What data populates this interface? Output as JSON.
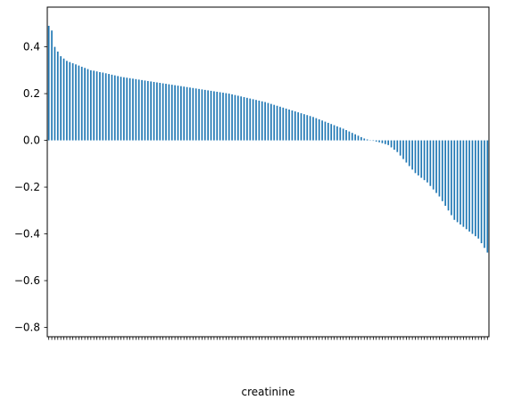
{
  "chart_data": {
    "type": "bar",
    "title": "",
    "xlabel": "creatinine",
    "ylabel": "",
    "ylim": [
      -0.84,
      0.57
    ],
    "yticks": [
      0.4,
      0.2,
      0.0,
      -0.2,
      -0.4,
      -0.6,
      -0.8
    ],
    "ytick_labels": [
      "0.4",
      "0.2",
      "0.0",
      "−0.2",
      "−0.4",
      "−0.6",
      "−0.8"
    ],
    "grid": false,
    "legend": "none",
    "bar_color": "#1f77b4",
    "values": [
      0.49,
      0.47,
      0.4,
      0.38,
      0.36,
      0.35,
      0.34,
      0.335,
      0.33,
      0.325,
      0.32,
      0.315,
      0.31,
      0.305,
      0.3,
      0.298,
      0.295,
      0.292,
      0.29,
      0.287,
      0.284,
      0.281,
      0.278,
      0.275,
      0.272,
      0.27,
      0.268,
      0.266,
      0.264,
      0.262,
      0.26,
      0.258,
      0.256,
      0.254,
      0.252,
      0.25,
      0.248,
      0.246,
      0.244,
      0.242,
      0.24,
      0.238,
      0.236,
      0.234,
      0.232,
      0.23,
      0.228,
      0.226,
      0.224,
      0.222,
      0.22,
      0.218,
      0.216,
      0.214,
      0.212,
      0.21,
      0.208,
      0.206,
      0.204,
      0.202,
      0.2,
      0.197,
      0.194,
      0.191,
      0.188,
      0.185,
      0.182,
      0.179,
      0.176,
      0.173,
      0.17,
      0.167,
      0.164,
      0.16,
      0.156,
      0.152,
      0.148,
      0.144,
      0.14,
      0.136,
      0.132,
      0.128,
      0.124,
      0.12,
      0.116,
      0.112,
      0.108,
      0.104,
      0.1,
      0.095,
      0.09,
      0.085,
      0.08,
      0.075,
      0.07,
      0.065,
      0.06,
      0.055,
      0.05,
      0.044,
      0.038,
      0.032,
      0.026,
      0.02,
      0.014,
      0.008,
      0.004,
      0.001,
      -0.002,
      -0.005,
      -0.008,
      -0.012,
      -0.016,
      -0.02,
      -0.03,
      -0.04,
      -0.05,
      -0.065,
      -0.08,
      -0.095,
      -0.11,
      -0.125,
      -0.14,
      -0.15,
      -0.16,
      -0.17,
      -0.18,
      -0.195,
      -0.21,
      -0.225,
      -0.24,
      -0.26,
      -0.28,
      -0.3,
      -0.32,
      -0.34,
      -0.35,
      -0.36,
      -0.37,
      -0.38,
      -0.39,
      -0.4,
      -0.41,
      -0.42,
      -0.44,
      -0.46,
      -0.48
    ]
  }
}
